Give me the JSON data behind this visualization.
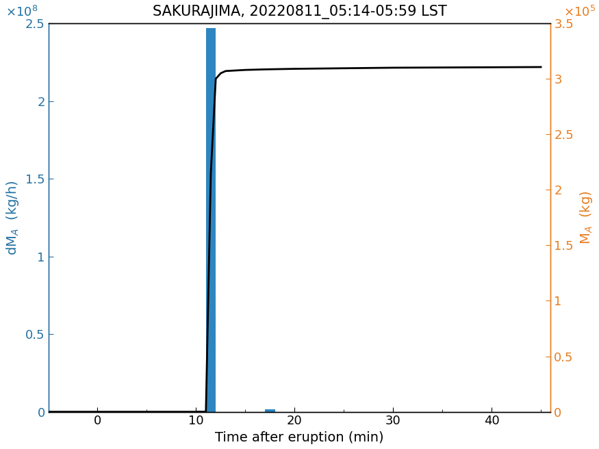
{
  "title": "SAKURAJIMA, 20220811_05:14-05:59 LST",
  "xlabel": "Time after eruption (min)",
  "ylabel_left": "dM$_A$  (kg/h)",
  "ylabel_right": "M$_A$  (kg)",
  "bar_x": [
    -4.5,
    -3.5,
    -2.5,
    -1.5,
    -0.5,
    0.5,
    1.5,
    2.5,
    3.5,
    4.5,
    5.5,
    6.5,
    7.5,
    8.5,
    9.5,
    10.5,
    11.5,
    12.5,
    13.5,
    14.5,
    15.5,
    16.5,
    17.5,
    18.5,
    19.5,
    20.5,
    21.5,
    22.5,
    23.5,
    24.5,
    25.5,
    26.5,
    27.5,
    28.5,
    29.5,
    30.5,
    31.5,
    32.5,
    33.5,
    34.5,
    35.5,
    36.5,
    37.5,
    38.5,
    39.5,
    40.5,
    41.5,
    42.5,
    43.5,
    44.5
  ],
  "bar_heights": [
    0,
    0,
    0,
    0,
    0,
    0,
    0,
    0,
    0,
    0,
    0,
    0,
    0,
    0,
    0,
    600000,
    247000000,
    0,
    0,
    0,
    0,
    0,
    1500000,
    0,
    0,
    0,
    0,
    0,
    0,
    0,
    0,
    0,
    0,
    0,
    0,
    0,
    0,
    0,
    0,
    0,
    0,
    0,
    0,
    0,
    0,
    0,
    0,
    0,
    0,
    0
  ],
  "bar_color": "#2E86C1",
  "bar_width": 1.0,
  "line_x": [
    -5,
    9.0,
    10.0,
    11.0,
    11.5,
    12.0,
    12.5,
    13.0,
    14.0,
    15.0,
    17.0,
    20.0,
    25.0,
    30.0,
    35.0,
    40.0,
    45.0
  ],
  "line_y": [
    0,
    0,
    0,
    0,
    215000,
    300000,
    305000,
    307000,
    307500,
    308000,
    308500,
    309000,
    309500,
    310000,
    310200,
    310400,
    310600
  ],
  "line_color": "#000000",
  "line_width": 2.0,
  "xlim": [
    -5,
    46
  ],
  "ylim_left": [
    0,
    250000000.0
  ],
  "ylim_right": [
    0,
    350000.0
  ],
  "xticks": [
    0,
    10,
    20,
    30,
    40
  ],
  "yticks_left": [
    0,
    50000000.0,
    100000000.0,
    150000000.0,
    200000000.0,
    250000000.0
  ],
  "yticks_right": [
    0,
    50000.0,
    100000.0,
    150000.0,
    200000.0,
    250000.0,
    300000.0,
    350000.0
  ],
  "left_axis_color": "#2471A3",
  "right_axis_color": "#E67E22",
  "title_fontsize": 15,
  "label_fontsize": 14,
  "tick_fontsize": 13,
  "figsize": [
    8.75,
    6.56
  ],
  "dpi": 100
}
